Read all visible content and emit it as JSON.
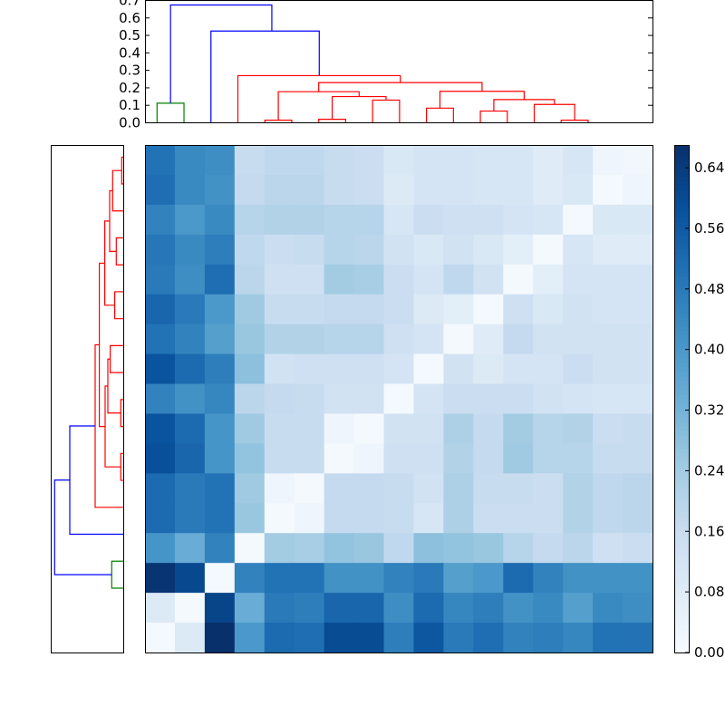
{
  "chart_data": [
    {
      "type": "dendrogram",
      "orientation": "top",
      "leaf_count": 17,
      "ylim": [
        0,
        0.7
      ],
      "yticks": [
        "0.0",
        "0.1",
        "0.2",
        "0.3",
        "0.4",
        "0.5",
        "0.6",
        "0.7"
      ],
      "links": [
        {
          "x": [
            0,
            1
          ],
          "h": 0.112,
          "hl": 0,
          "hr": 0,
          "color": "#008000"
        },
        {
          "x": [
            4,
            5
          ],
          "h": 0.015,
          "hl": 0,
          "hr": 0,
          "color": "#ff0000"
        },
        {
          "x": [
            6,
            7
          ],
          "h": 0.02,
          "hl": 0,
          "hr": 0,
          "color": "#ff0000"
        },
        {
          "x": [
            8,
            9
          ],
          "h": 0.13,
          "hl": 0,
          "hr": 0,
          "color": "#ff0000"
        },
        {
          "x": [
            10,
            11
          ],
          "h": 0.084,
          "hl": 0,
          "hr": 0,
          "color": "#ff0000"
        },
        {
          "x": [
            12,
            13
          ],
          "h": 0.067,
          "hl": 0,
          "hr": 0,
          "color": "#ff0000"
        },
        {
          "x": [
            15,
            16
          ],
          "h": 0.015,
          "hl": 0,
          "hr": 0,
          "color": "#ff0000"
        },
        {
          "x": [
            14,
            15.5
          ],
          "h": 0.105,
          "hl": 0,
          "hr": 0.015,
          "color": "#ff0000"
        },
        {
          "x": [
            12.5,
            14.75
          ],
          "h": 0.133,
          "hl": 0.067,
          "hr": 0.105,
          "color": "#ff0000"
        },
        {
          "x": [
            10.5,
            13.625
          ],
          "h": 0.18,
          "hl": 0.084,
          "hr": 0.133,
          "color": "#ff0000"
        },
        {
          "x": [
            6.5,
            8.5
          ],
          "h": 0.15,
          "hl": 0.02,
          "hr": 0.13,
          "color": "#ff0000"
        },
        {
          "x": [
            4.5,
            7.5
          ],
          "h": 0.178,
          "hl": 0.015,
          "hr": 0.15,
          "color": "#ff0000"
        },
        {
          "x": [
            6,
            12.0625
          ],
          "h": 0.23,
          "hl": 0.178,
          "hr": 0.18,
          "color": "#ff0000"
        },
        {
          "x": [
            3,
            9.03
          ],
          "h": 0.27,
          "hl": 0,
          "hr": 0.23,
          "color": "#ff0000"
        },
        {
          "x": [
            2,
            6.02
          ],
          "h": 0.525,
          "hl": 0,
          "hr": 0.27,
          "color": "#0000ff"
        },
        {
          "x": [
            0.5,
            4.26
          ],
          "h": 0.674,
          "hl": 0.112,
          "hr": 0.525,
          "color": "#0000ff"
        }
      ]
    },
    {
      "type": "dendrogram",
      "orientation": "left",
      "leaf_count": 17,
      "xlim": [
        0,
        0.8
      ],
      "links": [
        {
          "x": [
            0,
            1
          ],
          "h": 0.02,
          "hl": 0,
          "hr": 0,
          "color": "#ff0000"
        },
        {
          "x": [
            3,
            4
          ],
          "h": 0.08,
          "hl": 0,
          "hr": 0,
          "color": "#ff0000"
        },
        {
          "x": [
            5,
            6
          ],
          "h": 0.097,
          "hl": 0,
          "hr": 0,
          "color": "#ff0000"
        },
        {
          "x": [
            7,
            8
          ],
          "h": 0.147,
          "hl": 0,
          "hr": 0,
          "color": "#ff0000"
        },
        {
          "x": [
            9,
            10
          ],
          "h": 0.03,
          "hl": 0,
          "hr": 0,
          "color": "#ff0000"
        },
        {
          "x": [
            11,
            12
          ],
          "h": 0.03,
          "hl": 0,
          "hr": 0,
          "color": "#ff0000"
        },
        {
          "x": [
            15,
            16
          ],
          "h": 0.13,
          "hl": 0,
          "hr": 0,
          "color": "#008000"
        },
        {
          "x": [
            0.5,
            2
          ],
          "h": 0.12,
          "hl": 0.02,
          "hr": 0,
          "color": "#ff0000"
        },
        {
          "x": [
            1.25,
            3.5
          ],
          "h": 0.153,
          "hl": 0.12,
          "hr": 0.08,
          "color": "#ff0000"
        },
        {
          "x": [
            7.5,
            9.5
          ],
          "h": 0.173,
          "hl": 0.147,
          "hr": 0.03,
          "color": "#ff0000"
        },
        {
          "x": [
            2.375,
            5.5
          ],
          "h": 0.207,
          "hl": 0.153,
          "hr": 0.097,
          "color": "#ff0000"
        },
        {
          "x": [
            8.5,
            11.5
          ],
          "h": 0.203,
          "hl": 0.173,
          "hr": 0.03,
          "color": "#ff0000"
        },
        {
          "x": [
            3.94,
            10
          ],
          "h": 0.267,
          "hl": 0.207,
          "hr": 0.203,
          "color": "#ff0000"
        },
        {
          "x": [
            6.97,
            13
          ],
          "h": 0.313,
          "hl": 0.267,
          "hr": 0,
          "color": "#ff0000"
        },
        {
          "x": [
            9.98,
            14
          ],
          "h": 0.593,
          "hl": 0.313,
          "hr": 0,
          "color": "#0000ff"
        },
        {
          "x": [
            11.99,
            15.5
          ],
          "h": 0.76,
          "hl": 0.593,
          "hr": 0.13,
          "color": "#0000ff"
        }
      ]
    },
    {
      "type": "heatmap",
      "colormap": "Blues",
      "vmin": 0,
      "vmax": 0.67,
      "colorbar_ticks": [
        "0.00",
        "0.08",
        "0.16",
        "0.24",
        "0.32",
        "0.40",
        "0.48",
        "0.56",
        "0.64"
      ],
      "values": [
        [
          0.5,
          0.44,
          0.43,
          0.16,
          0.18,
          0.18,
          0.16,
          0.15,
          0.1,
          0.12,
          0.12,
          0.11,
          0.11,
          0.08,
          0.11,
          0.03,
          0.02
        ],
        [
          0.51,
          0.44,
          0.42,
          0.17,
          0.19,
          0.19,
          0.16,
          0.15,
          0.09,
          0.12,
          0.12,
          0.11,
          0.11,
          0.08,
          0.1,
          0.01,
          0.03
        ],
        [
          0.46,
          0.4,
          0.44,
          0.2,
          0.21,
          0.21,
          0.2,
          0.2,
          0.11,
          0.15,
          0.14,
          0.14,
          0.12,
          0.11,
          0.01,
          0.1,
          0.1
        ],
        [
          0.49,
          0.44,
          0.47,
          0.18,
          0.15,
          0.16,
          0.2,
          0.19,
          0.13,
          0.1,
          0.13,
          0.1,
          0.07,
          0.01,
          0.11,
          0.08,
          0.08
        ],
        [
          0.48,
          0.43,
          0.51,
          0.19,
          0.14,
          0.14,
          0.24,
          0.23,
          0.15,
          0.12,
          0.18,
          0.13,
          0.01,
          0.07,
          0.12,
          0.12,
          0.12
        ],
        [
          0.53,
          0.48,
          0.4,
          0.25,
          0.16,
          0.16,
          0.17,
          0.17,
          0.15,
          0.09,
          0.07,
          0.01,
          0.14,
          0.1,
          0.13,
          0.12,
          0.12
        ],
        [
          0.5,
          0.46,
          0.38,
          0.26,
          0.21,
          0.21,
          0.2,
          0.2,
          0.14,
          0.12,
          0.01,
          0.08,
          0.17,
          0.13,
          0.13,
          0.13,
          0.13
        ],
        [
          0.58,
          0.52,
          0.47,
          0.28,
          0.13,
          0.14,
          0.14,
          0.14,
          0.12,
          0.01,
          0.13,
          0.09,
          0.12,
          0.12,
          0.15,
          0.13,
          0.13
        ],
        [
          0.46,
          0.42,
          0.45,
          0.19,
          0.17,
          0.16,
          0.13,
          0.13,
          0.01,
          0.12,
          0.15,
          0.15,
          0.15,
          0.13,
          0.12,
          0.11,
          0.11
        ],
        [
          0.58,
          0.52,
          0.41,
          0.25,
          0.16,
          0.16,
          0.03,
          0.01,
          0.13,
          0.13,
          0.22,
          0.17,
          0.24,
          0.2,
          0.21,
          0.15,
          0.16
        ],
        [
          0.59,
          0.53,
          0.41,
          0.27,
          0.16,
          0.16,
          0.01,
          0.03,
          0.14,
          0.14,
          0.21,
          0.17,
          0.25,
          0.2,
          0.2,
          0.16,
          0.16
        ],
        [
          0.52,
          0.48,
          0.5,
          0.25,
          0.03,
          0.01,
          0.17,
          0.17,
          0.16,
          0.13,
          0.22,
          0.16,
          0.16,
          0.15,
          0.21,
          0.18,
          0.19
        ],
        [
          0.52,
          0.48,
          0.5,
          0.26,
          0.01,
          0.03,
          0.17,
          0.17,
          0.16,
          0.11,
          0.22,
          0.15,
          0.15,
          0.15,
          0.21,
          0.18,
          0.19
        ],
        [
          0.41,
          0.34,
          0.46,
          0.01,
          0.24,
          0.23,
          0.27,
          0.26,
          0.18,
          0.28,
          0.27,
          0.26,
          0.2,
          0.17,
          0.19,
          0.14,
          0.15
        ],
        [
          0.66,
          0.61,
          0.01,
          0.46,
          0.5,
          0.5,
          0.42,
          0.42,
          0.46,
          0.48,
          0.38,
          0.4,
          0.52,
          0.46,
          0.42,
          0.42,
          0.42
        ],
        [
          0.09,
          0.01,
          0.62,
          0.34,
          0.48,
          0.47,
          0.53,
          0.53,
          0.43,
          0.52,
          0.45,
          0.47,
          0.42,
          0.44,
          0.38,
          0.44,
          0.43
        ],
        [
          0.01,
          0.09,
          0.67,
          0.4,
          0.52,
          0.51,
          0.6,
          0.6,
          0.47,
          0.57,
          0.48,
          0.51,
          0.46,
          0.47,
          0.45,
          0.5,
          0.5
        ]
      ]
    }
  ]
}
